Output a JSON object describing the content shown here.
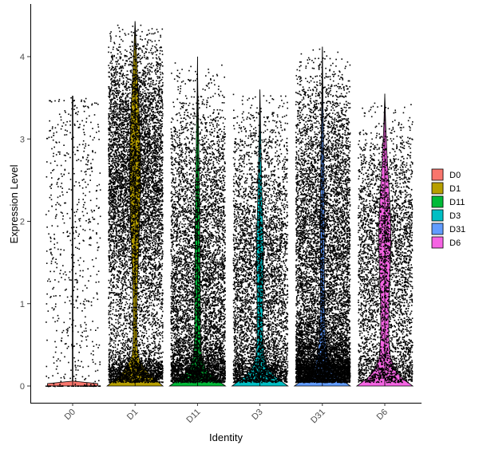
{
  "chart_data": {
    "type": "violin",
    "xlabel": "Identity",
    "ylabel": "Expression Level",
    "ylim": [
      -0.22,
      4.5
    ],
    "yticks": [
      0,
      1,
      2,
      3,
      4
    ],
    "categories": [
      "D0",
      "D1",
      "D11",
      "D3",
      "D31",
      "D6"
    ],
    "colors": [
      "#F8766D",
      "#B79F00",
      "#00BA38",
      "#00BFC4",
      "#619CFF",
      "#F564E3"
    ],
    "legend_position": "right",
    "grid": false,
    "jitter_points": true,
    "series": [
      {
        "name": "D0",
        "max": 3.52,
        "n_points": 600,
        "median": 0.0,
        "density": [
          [
            0,
            1.0
          ],
          [
            0.02,
            0.5
          ],
          [
            0.05,
            0.02
          ],
          [
            0.5,
            0.005
          ],
          [
            1,
            0.005
          ],
          [
            2,
            0.005
          ],
          [
            3,
            0.004
          ],
          [
            3.52,
            0.0
          ]
        ]
      },
      {
        "name": "D1",
        "max": 4.43,
        "n_points": 8000,
        "median": 2.45,
        "density": [
          [
            0,
            1.0
          ],
          [
            0.1,
            0.65
          ],
          [
            0.2,
            0.35
          ],
          [
            0.35,
            0.12
          ],
          [
            0.5,
            0.07
          ],
          [
            0.8,
            0.06
          ],
          [
            1.2,
            0.08
          ],
          [
            1.6,
            0.12
          ],
          [
            2.0,
            0.16
          ],
          [
            2.4,
            0.19
          ],
          [
            2.8,
            0.19
          ],
          [
            3.2,
            0.16
          ],
          [
            3.5,
            0.12
          ],
          [
            3.8,
            0.08
          ],
          [
            4.1,
            0.04
          ],
          [
            4.43,
            0.0
          ]
        ]
      },
      {
        "name": "D11",
        "max": 4.0,
        "n_points": 6500,
        "median": 1.3,
        "density": [
          [
            0,
            1.0
          ],
          [
            0.1,
            0.6
          ],
          [
            0.2,
            0.3
          ],
          [
            0.35,
            0.15
          ],
          [
            0.6,
            0.1
          ],
          [
            1.0,
            0.1
          ],
          [
            1.5,
            0.09
          ],
          [
            2.0,
            0.08
          ],
          [
            2.5,
            0.06
          ],
          [
            3.0,
            0.04
          ],
          [
            3.5,
            0.015
          ],
          [
            4.0,
            0.0
          ]
        ]
      },
      {
        "name": "D3",
        "max": 3.6,
        "n_points": 5000,
        "median": 1.5,
        "density": [
          [
            0,
            1.0
          ],
          [
            0.1,
            0.6
          ],
          [
            0.2,
            0.3
          ],
          [
            0.35,
            0.15
          ],
          [
            0.6,
            0.1
          ],
          [
            1.0,
            0.1
          ],
          [
            1.5,
            0.12
          ],
          [
            1.8,
            0.12
          ],
          [
            2.0,
            0.1
          ],
          [
            2.5,
            0.06
          ],
          [
            3.0,
            0.03
          ],
          [
            3.6,
            0.0
          ]
        ]
      },
      {
        "name": "D31",
        "max": 4.12,
        "n_points": 9500,
        "median": 1.9,
        "density": [
          [
            0,
            1.0
          ],
          [
            0.1,
            0.6
          ],
          [
            0.2,
            0.35
          ],
          [
            0.35,
            0.18
          ],
          [
            0.6,
            0.1
          ],
          [
            1.0,
            0.07
          ],
          [
            1.5,
            0.07
          ],
          [
            2.0,
            0.07
          ],
          [
            2.5,
            0.06
          ],
          [
            3.0,
            0.04
          ],
          [
            3.5,
            0.02
          ],
          [
            4.12,
            0.0
          ]
        ]
      },
      {
        "name": "D6",
        "max": 3.55,
        "n_points": 3800,
        "median": 1.6,
        "density": [
          [
            0,
            1.0
          ],
          [
            0.1,
            0.6
          ],
          [
            0.2,
            0.35
          ],
          [
            0.35,
            0.2
          ],
          [
            0.6,
            0.14
          ],
          [
            1.0,
            0.15
          ],
          [
            1.5,
            0.2
          ],
          [
            1.8,
            0.22
          ],
          [
            2.1,
            0.2
          ],
          [
            2.4,
            0.15
          ],
          [
            2.8,
            0.08
          ],
          [
            3.2,
            0.03
          ],
          [
            3.55,
            0.0
          ]
        ]
      }
    ]
  }
}
